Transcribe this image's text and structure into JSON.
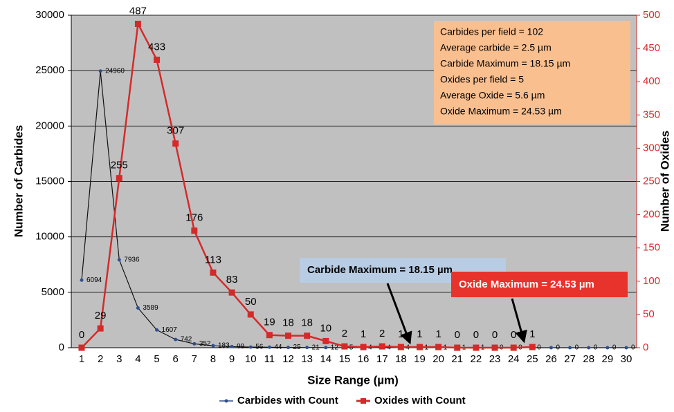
{
  "chart_data": {
    "type": "line",
    "x_label": "Size Range (µm)",
    "y_label": "Number of Carbides",
    "y2_label": "Number of Oxides",
    "categories": [
      "1",
      "2",
      "3",
      "4",
      "5",
      "6",
      "7",
      "8",
      "9",
      "10",
      "11",
      "12",
      "13",
      "14",
      "15",
      "16",
      "17",
      "18",
      "19",
      "20",
      "21",
      "22",
      "23",
      "24",
      "25",
      "26",
      "27",
      "28",
      "29",
      "30"
    ],
    "ylim": [
      0,
      30000
    ],
    "yticks": [
      0,
      5000,
      10000,
      15000,
      20000,
      25000,
      30000
    ],
    "y2lim": [
      0,
      500
    ],
    "y2ticks": [
      0,
      50,
      100,
      150,
      200,
      250,
      300,
      350,
      400,
      450,
      500
    ],
    "grid": true,
    "legend": "bottom",
    "series": [
      {
        "name": "Carbides with Count",
        "color": "#2f4f8f",
        "axis": "y",
        "values": [
          6094,
          24960,
          7936,
          3589,
          1607,
          742,
          352,
          183,
          99,
          56,
          44,
          25,
          21,
          12,
          5,
          4,
          4,
          4,
          1,
          1,
          1,
          1,
          0,
          0,
          0,
          0,
          0,
          0,
          0,
          0
        ]
      },
      {
        "name": "Oxides with Count",
        "color": "#d42a2a",
        "axis": "y2",
        "values": [
          0,
          29,
          255,
          487,
          433,
          307,
          176,
          113,
          83,
          50,
          19,
          18,
          18,
          10,
          2,
          1,
          2,
          1,
          1,
          1,
          0,
          0,
          0,
          0,
          1,
          null,
          null,
          null,
          null,
          null
        ]
      }
    ],
    "info_box": [
      "Carbides per field = 102",
      "Average  carbide = 2.5 µm",
      "Carbide Maximum =  18.15 µm",
      "Oxides per field = 5",
      "Average  Oxide =  5.6 µm",
      "Oxide Maximum = 24.53 µm"
    ],
    "callouts": [
      "Carbide Maximum =  18.15 µm",
      "Oxide Maximum = 24.53 µm"
    ]
  }
}
